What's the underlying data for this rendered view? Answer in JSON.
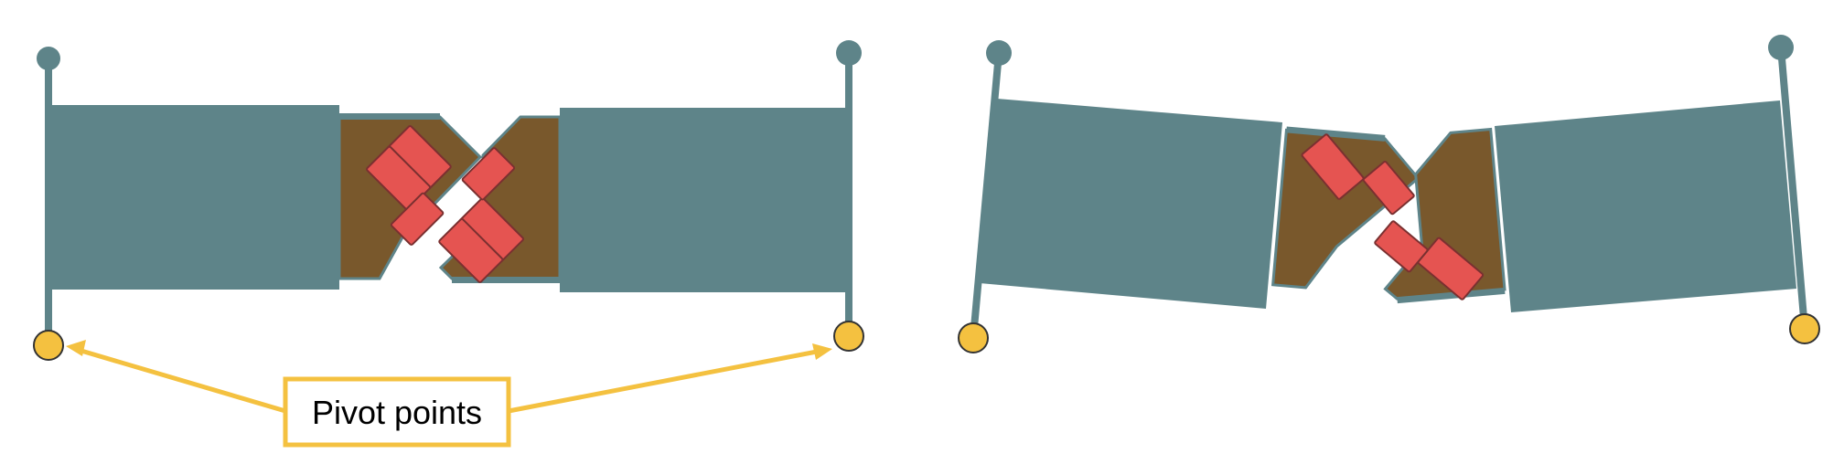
{
  "callout": {
    "label": "Pivot points"
  },
  "colors": {
    "plank": "#5E8489",
    "wood": "#79582C",
    "hinge_red": "#E55451",
    "hinge_stroke": "#7A3030",
    "pivot_yellow": "#F4C140",
    "stroke_dark": "#333333",
    "background": "#FFFFFF"
  },
  "icons": {
    "pivot": "yellow-circle",
    "anchor": "teal-knob",
    "arrow": "arrow-head"
  }
}
